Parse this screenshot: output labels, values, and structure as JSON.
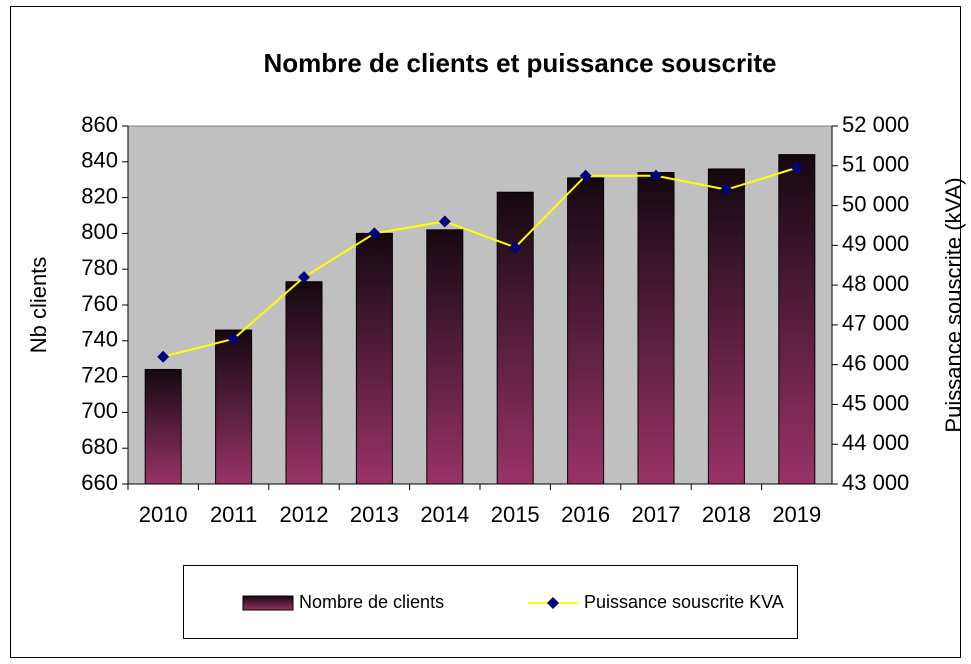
{
  "chart_data": {
    "type": "bar_line",
    "title": "Nombre de clients et puissance souscrite",
    "y_label": "Nb clients",
    "y2_label": "Puissance souscrite (kVA)",
    "categories": [
      "2010",
      "2011",
      "2012",
      "2013",
      "2014",
      "2015",
      "2016",
      "2017",
      "2018",
      "2019"
    ],
    "series": [
      {
        "name": "Nombre de clients",
        "type": "bar",
        "color": "#993366",
        "values": [
          724,
          746,
          773,
          800,
          802,
          823,
          831,
          834,
          836,
          844
        ]
      },
      {
        "name": "Puissance souscrite KVA",
        "type": "line",
        "axis": "y2",
        "color": "#ffff00",
        "marker_color": "#000080",
        "values": [
          46200,
          46650,
          48200,
          49300,
          49600,
          48950,
          50750,
          50750,
          50400,
          50950
        ]
      }
    ],
    "ylim": [
      660,
      860
    ],
    "yticks": [
      660,
      680,
      700,
      720,
      740,
      760,
      780,
      800,
      820,
      840,
      860
    ],
    "y2lim": [
      43000,
      52000
    ],
    "y2ticks": [
      {
        "value": 43000,
        "label": "43 000"
      },
      {
        "value": 44000,
        "label": "44 000"
      },
      {
        "value": 45000,
        "label": "45 000"
      },
      {
        "value": 46000,
        "label": "46 000"
      },
      {
        "value": 47000,
        "label": "47 000"
      },
      {
        "value": 48000,
        "label": "48 000"
      },
      {
        "value": 49000,
        "label": "49 000"
      },
      {
        "value": 50000,
        "label": "50 000"
      },
      {
        "value": 51000,
        "label": "51 000"
      },
      {
        "value": 52000,
        "label": "52 000"
      }
    ],
    "plot_background": "#c0c0c0",
    "legend": "bottom"
  }
}
